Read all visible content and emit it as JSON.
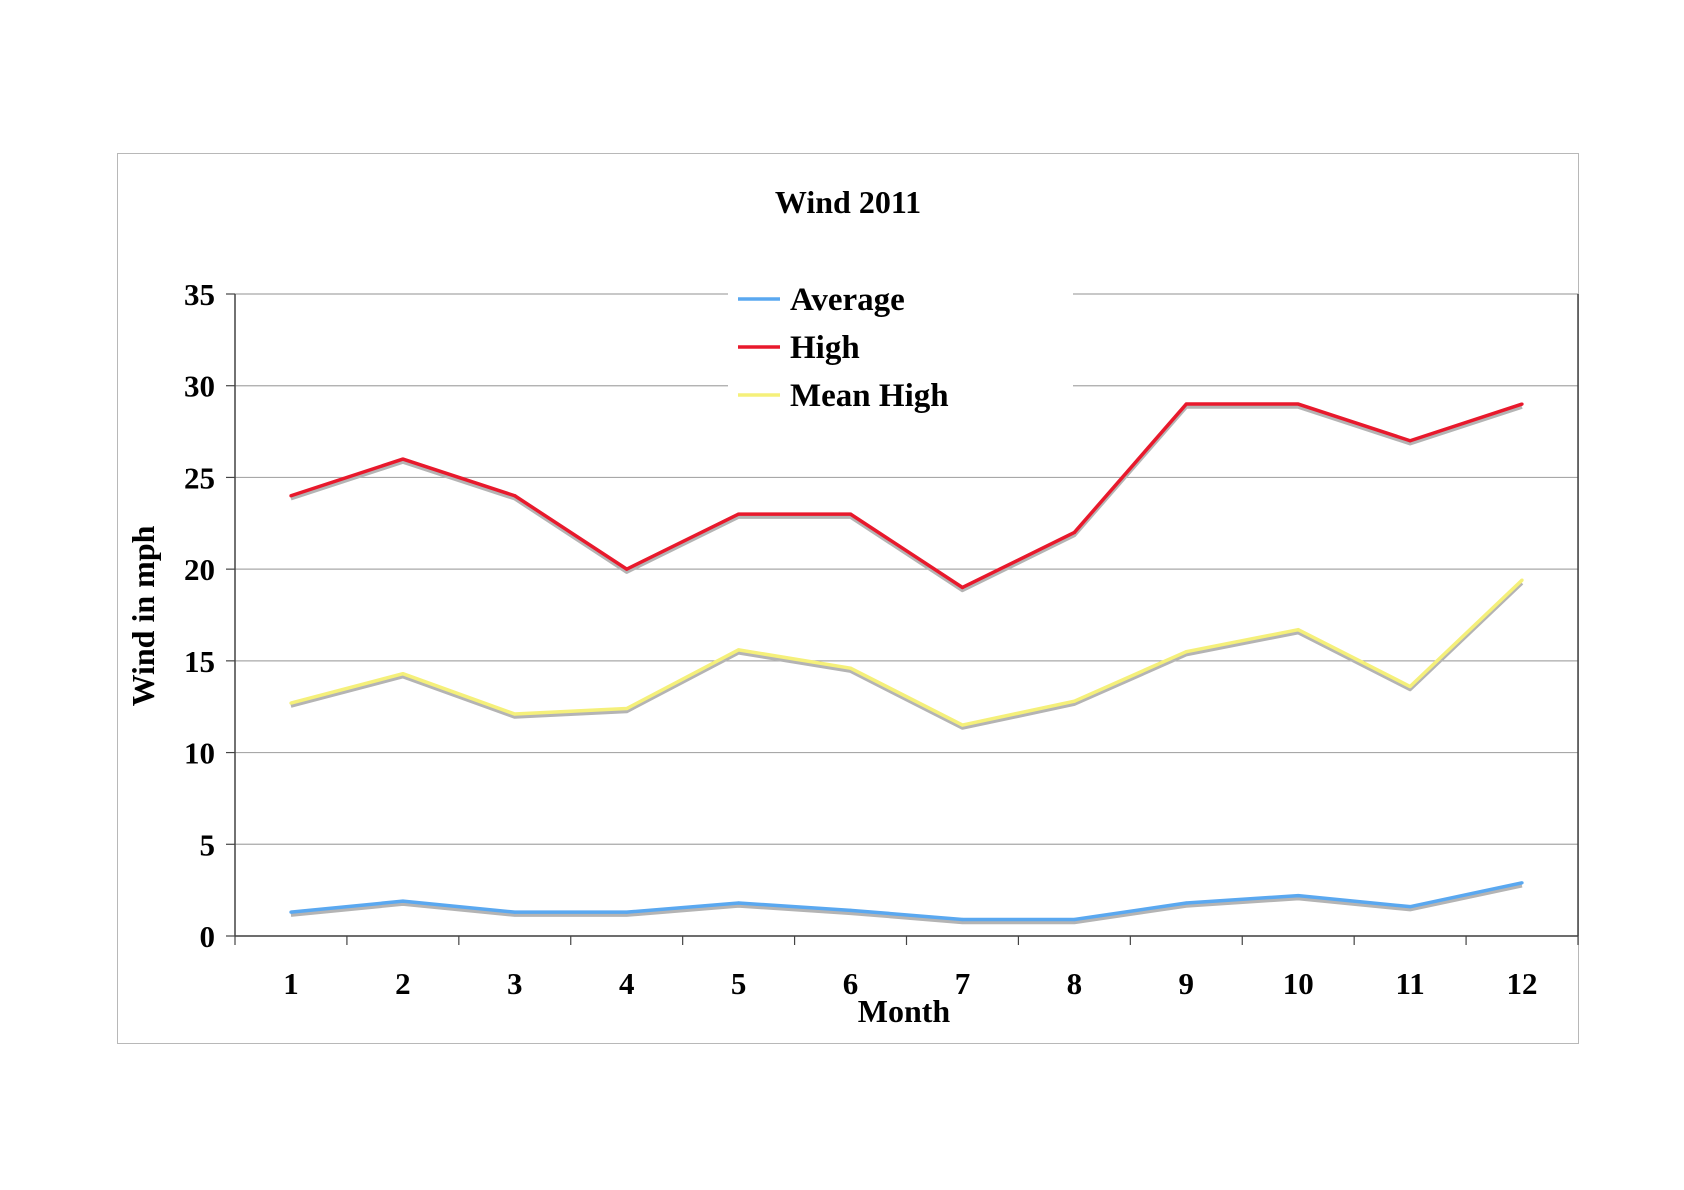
{
  "chart_data": {
    "type": "line",
    "title": "Wind 2011",
    "xlabel": "Month",
    "ylabel": "Wind in mph",
    "categories": [
      "1",
      "2",
      "3",
      "4",
      "5",
      "6",
      "7",
      "8",
      "9",
      "10",
      "11",
      "12"
    ],
    "ylim": [
      0,
      35
    ],
    "yticks": [
      "0",
      "5",
      "10",
      "15",
      "20",
      "25",
      "30",
      "35"
    ],
    "grid": true,
    "legend_position": "top-center",
    "series": [
      {
        "name": "Average",
        "color": "#5aa8f0",
        "values": [
          1.3,
          1.9,
          1.3,
          1.3,
          1.8,
          1.4,
          0.9,
          0.9,
          1.8,
          2.2,
          1.6,
          2.9
        ]
      },
      {
        "name": "High",
        "color": "#e8192c",
        "values": [
          24,
          26,
          24,
          20,
          23,
          23,
          19,
          22,
          29,
          29,
          27,
          29
        ]
      },
      {
        "name": "Mean High",
        "color": "#f5f07a",
        "values": [
          12.7,
          14.3,
          12.1,
          12.4,
          15.6,
          14.6,
          11.5,
          12.8,
          15.5,
          16.7,
          13.6,
          19.4
        ]
      }
    ]
  }
}
